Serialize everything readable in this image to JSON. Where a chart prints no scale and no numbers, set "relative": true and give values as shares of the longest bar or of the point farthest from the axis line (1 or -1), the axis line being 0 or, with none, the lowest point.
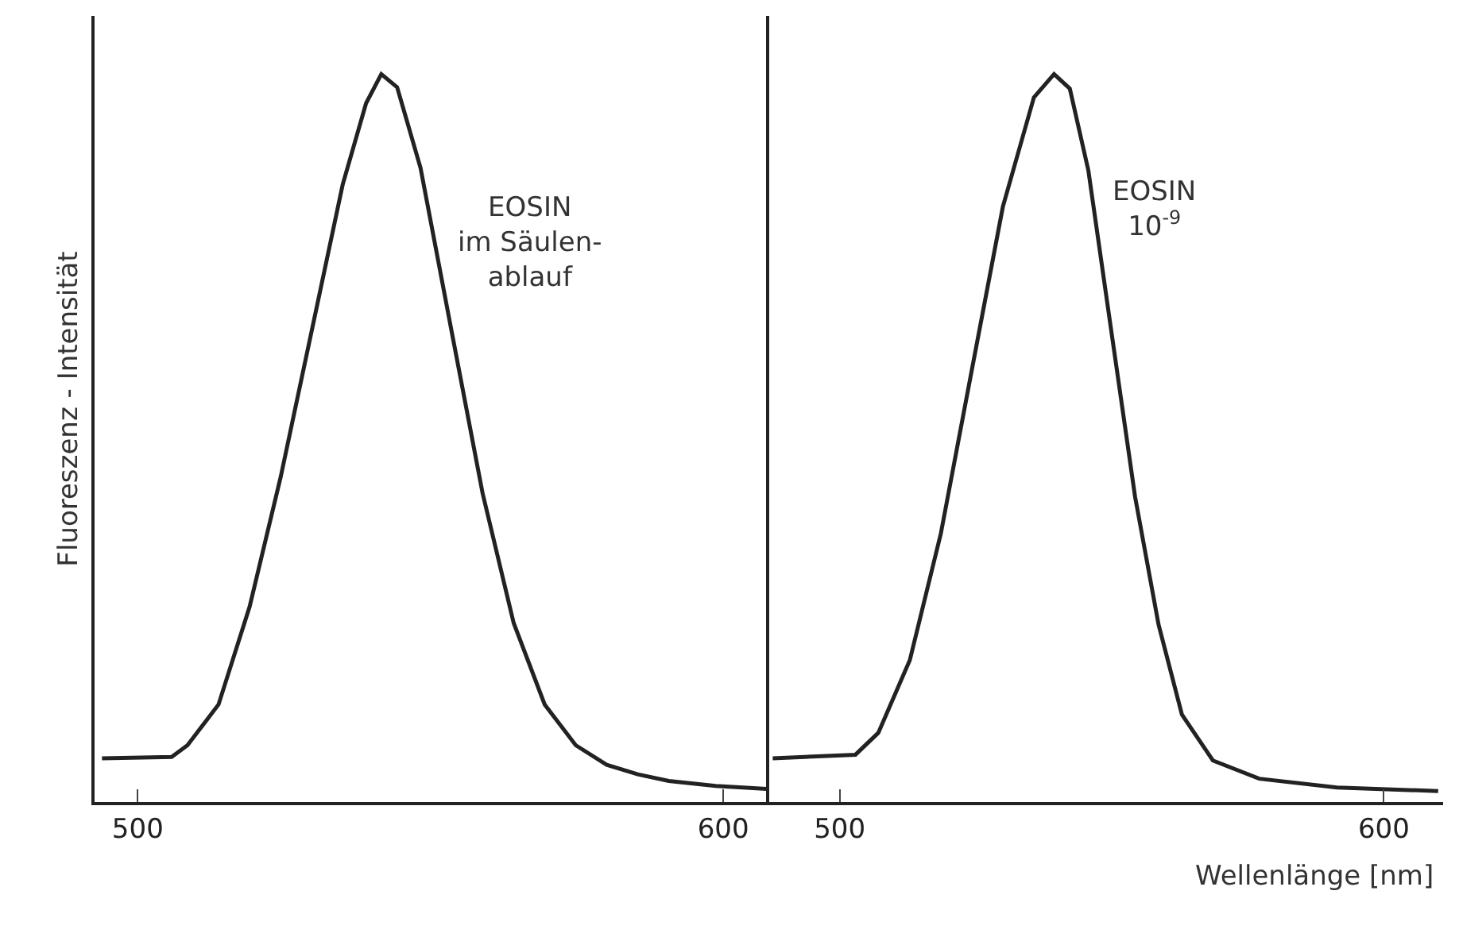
{
  "chart_data": [
    {
      "type": "line",
      "relative": true,
      "ylabel": "Fluoreszenz - Intensität",
      "xlim": [
        492.6,
        607.4
      ],
      "xticks": [
        500,
        600
      ],
      "marker": "none",
      "line_style": "solid",
      "annotations": [
        "EOSIN\nim Säulen-\nablauf"
      ],
      "series": [
        {
          "color": "#222222",
          "x": [
            493.9,
            505.8,
            508.5,
            513.8,
            519.1,
            524.4,
            529.7,
            535.0,
            539.0,
            541.6,
            544.3,
            548.3,
            553.6,
            558.9,
            564.2,
            569.5,
            574.8,
            580.1,
            585.4,
            590.7,
            598.7,
            607.4
          ],
          "values": [
            0.06,
            0.062,
            0.078,
            0.134,
            0.268,
            0.446,
            0.647,
            0.848,
            0.96,
            1,
            0.982,
            0.871,
            0.647,
            0.424,
            0.246,
            0.134,
            0.078,
            0.051,
            0.038,
            0.029,
            0.022,
            0.018
          ]
        }
      ]
    },
    {
      "type": "line",
      "relative": true,
      "xlabel": "Wellenlänge [nm]",
      "xlim": [
        487.1,
        610.9
      ],
      "xticks": [
        500,
        600
      ],
      "marker": "none",
      "line_style": "solid",
      "annotations": [
        "EOSIN\n10$^{-9}$"
      ],
      "series": [
        {
          "color": "#222222",
          "x": [
            487.7,
            502.9,
            507.1,
            512.9,
            518.6,
            524.3,
            530.0,
            535.7,
            539.4,
            542.3,
            545.7,
            550.0,
            554.3,
            558.6,
            562.9,
            568.6,
            577.1,
            591.4,
            610.0
          ],
          "values": [
            0.06,
            0.065,
            0.095,
            0.195,
            0.369,
            0.594,
            0.818,
            0.968,
            1,
            0.98,
            0.868,
            0.643,
            0.419,
            0.244,
            0.12,
            0.057,
            0.032,
            0.02,
            0.015
          ]
        }
      ]
    }
  ]
}
